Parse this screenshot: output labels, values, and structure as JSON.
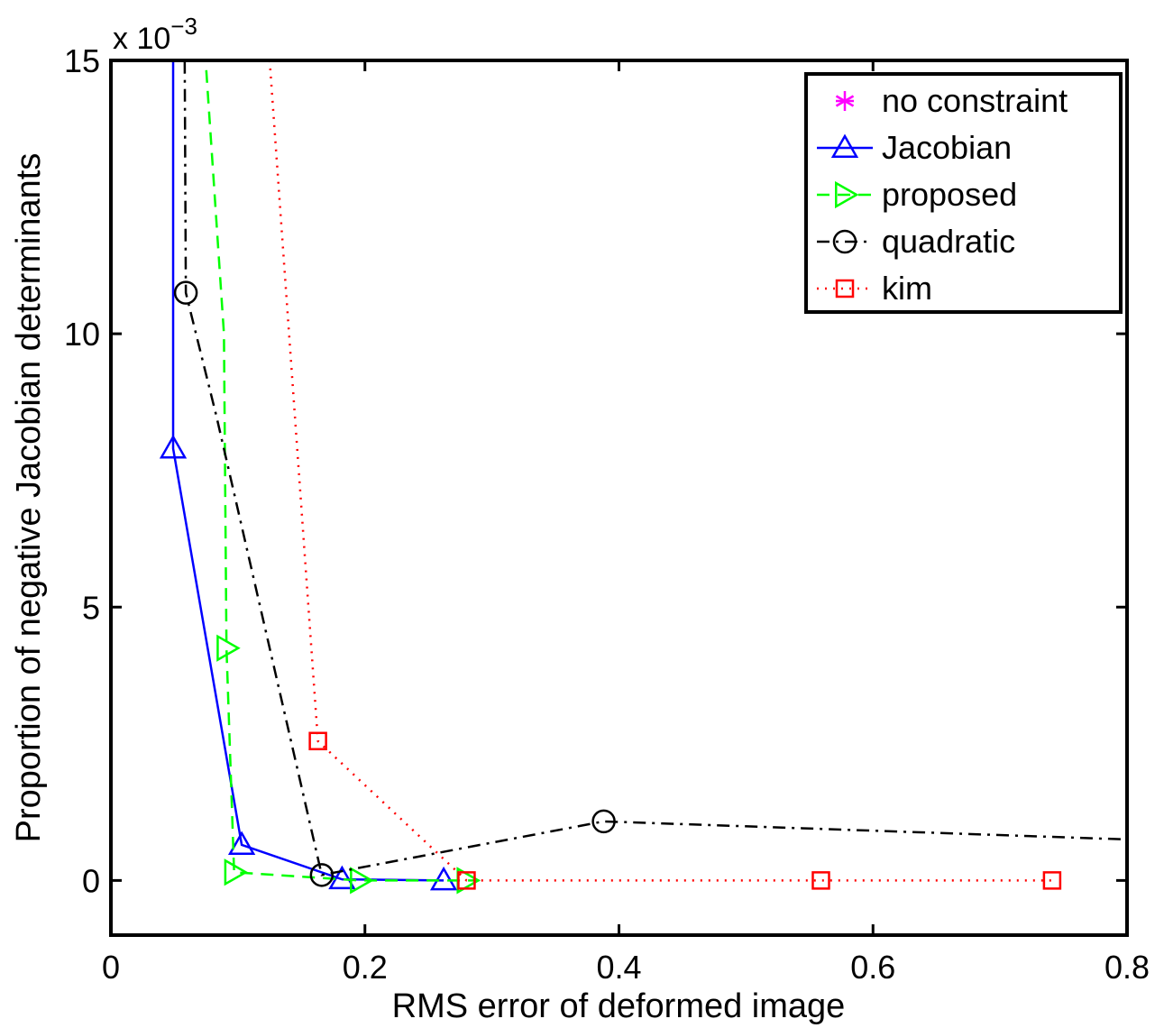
{
  "chart_data": {
    "type": "line",
    "xlabel": "RMS error of deformed image",
    "ylabel": "Proportion of negative Jacobian determinants",
    "y_multiplier": {
      "prefix": "x 10",
      "exponent": "−3"
    },
    "xlim": [
      0,
      0.8
    ],
    "ylim": [
      -1,
      15
    ],
    "xticks": [
      0,
      0.2,
      0.4,
      0.6,
      0.8
    ],
    "xtick_labels": [
      "0",
      "0.2",
      "0.4",
      "0.6",
      "0.8"
    ],
    "yticks": [
      0,
      5,
      10,
      15
    ],
    "ytick_labels": [
      "0",
      "5",
      "10",
      "15"
    ],
    "grid": false,
    "legend_position": "top-right",
    "series": [
      {
        "name": "no constraint",
        "color": "#ff00ff",
        "marker": "asterisk",
        "dash": "solid",
        "x": [],
        "y": []
      },
      {
        "name": "Jacobian",
        "color": "#0000ff",
        "marker": "triangle-up",
        "dash": "solid",
        "x": [
          0.049,
          0.049,
          0.103,
          0.182,
          0.262
        ],
        "y": [
          16.5,
          7.9,
          0.65,
          0.02,
          0.0
        ],
        "markers_at": [
          1,
          2,
          3,
          4
        ]
      },
      {
        "name": "proposed",
        "color": "#00ff00",
        "marker": "triangle-right",
        "dash": "dashed",
        "x": [
          0.074,
          0.089,
          0.091,
          0.097,
          0.196,
          0.28,
          0.29
        ],
        "y": [
          15.2,
          10.0,
          4.25,
          0.15,
          0.0,
          0.0,
          0.0
        ],
        "markers_at": [
          2,
          3,
          4,
          5
        ]
      },
      {
        "name": "quadratic",
        "color": "#000000",
        "marker": "circle",
        "dash": "dashdot",
        "x": [
          0.058,
          0.059,
          0.083,
          0.166,
          0.388,
          0.8
        ],
        "y": [
          15.5,
          10.75,
          8.5,
          0.1,
          1.08,
          0.75
        ],
        "markers_at": [
          1,
          3,
          4
        ]
      },
      {
        "name": "kim",
        "color": "#ff0000",
        "marker": "square",
        "dash": "dotted",
        "x": [
          0.125,
          0.163,
          0.28,
          0.559,
          0.741
        ],
        "y": [
          15.0,
          2.55,
          0.0,
          0.0,
          0.0
        ],
        "markers_at": [
          1,
          2,
          3,
          4
        ]
      }
    ]
  }
}
